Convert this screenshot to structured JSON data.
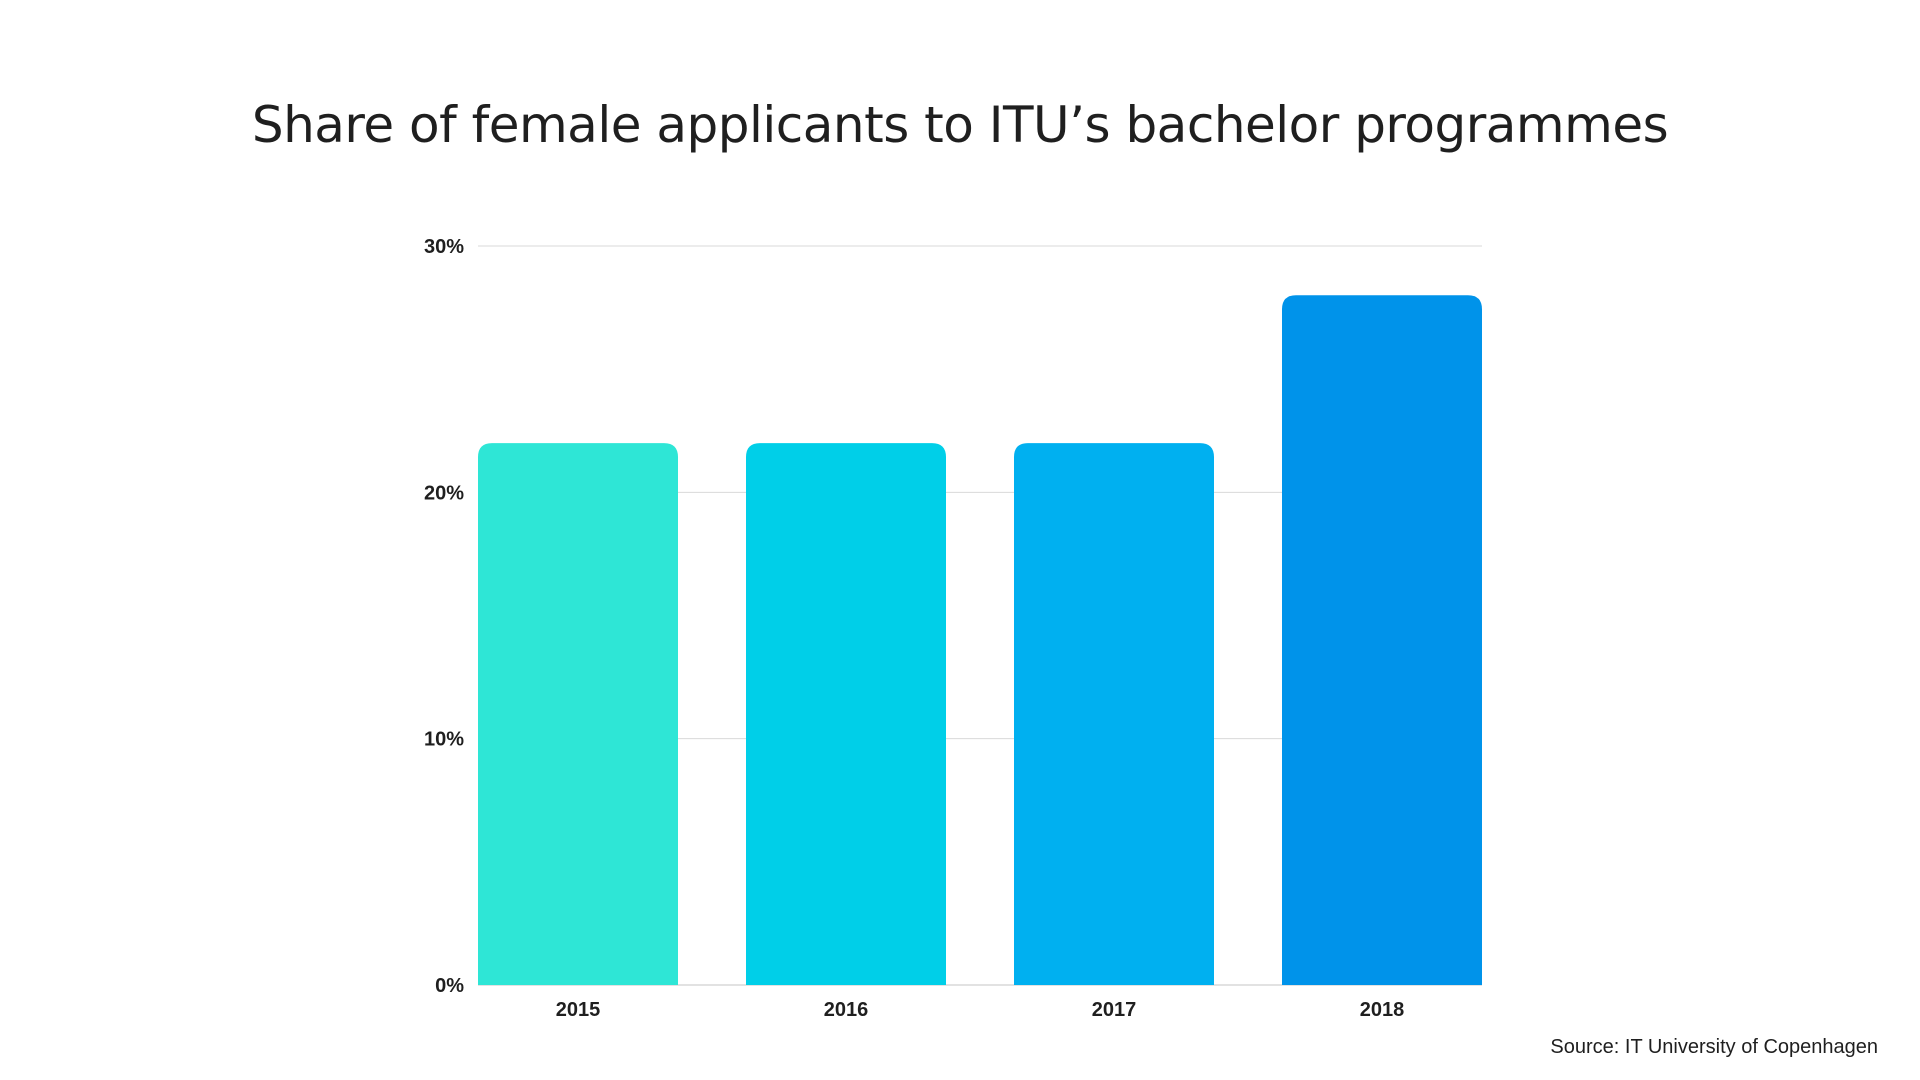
{
  "chart_data": {
    "type": "bar",
    "title": "Share of female applicants to ITU’s bachelor programmes",
    "categories": [
      "2015",
      "2016",
      "2017",
      "2018"
    ],
    "values": [
      22,
      22,
      22,
      28
    ],
    "value_unit": "%",
    "ylim": [
      0,
      30
    ],
    "yticks": [
      0,
      10,
      20,
      30
    ],
    "ytick_labels": [
      "0%",
      "10%",
      "20%",
      "30%"
    ],
    "xlabel": "",
    "ylabel": "",
    "grid": true,
    "legend": "none",
    "bar_colors": [
      "#2ee6d6",
      "#00cfe8",
      "#00b0f0",
      "#0093ea"
    ],
    "gridline_color": "#d9d9d9"
  },
  "source": "Source: IT University of Copenhagen"
}
